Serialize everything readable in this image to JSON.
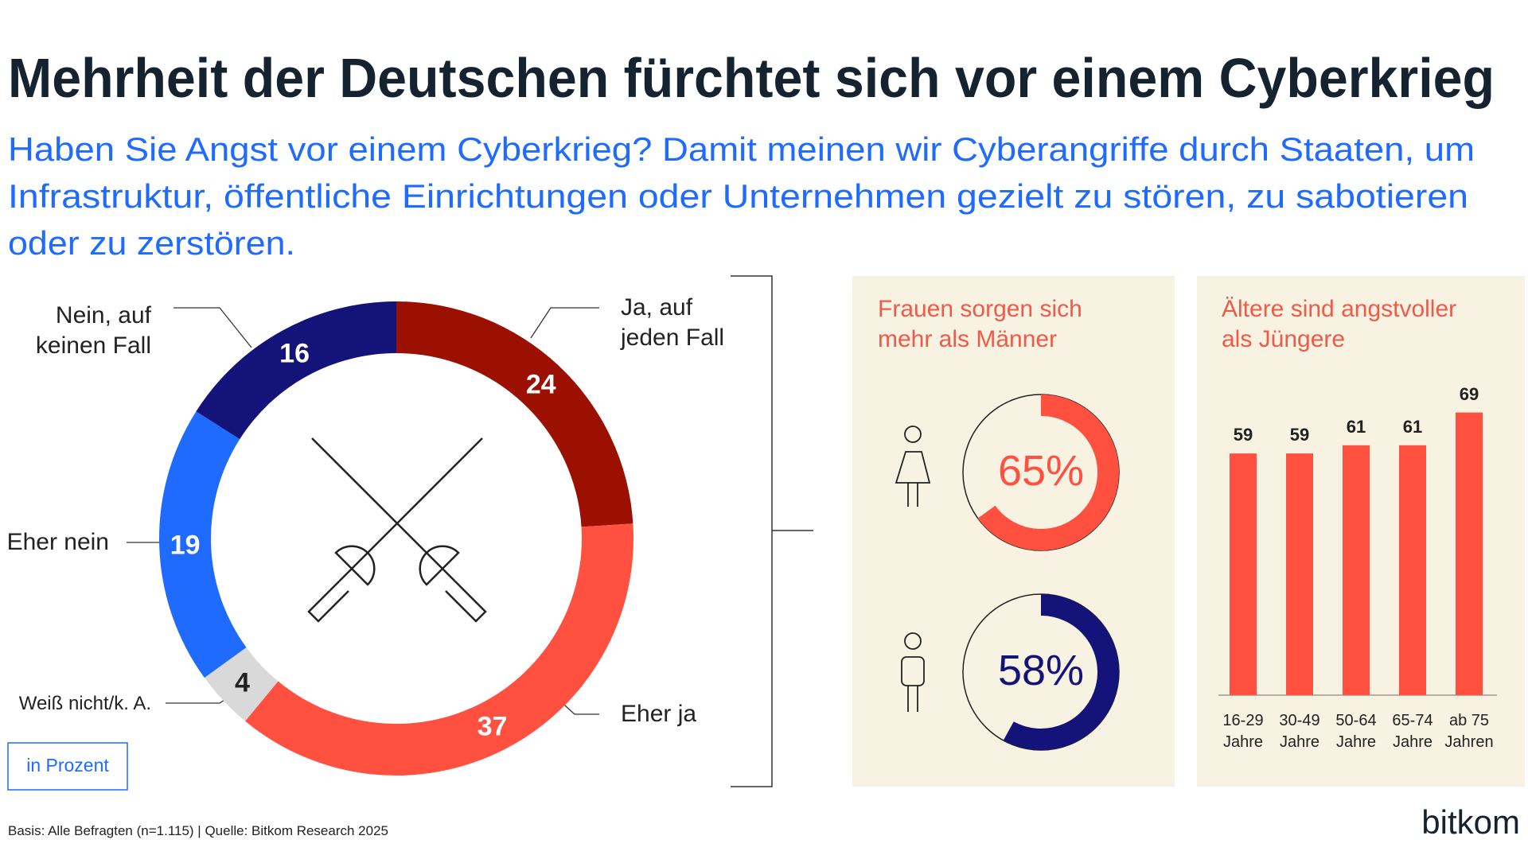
{
  "title": "Mehrheit der Deutschen fürchtet sich vor einem Cyberkrieg",
  "subtitle": [
    "Haben Sie Angst vor einem Cyberkrieg? Damit meinen wir Cyberangriffe durch Staaten, um",
    "Infrastruktur, öffentliche Einrichtungen oder Unternehmen gezielt zu stören, zu sabotieren",
    "oder zu zerstören."
  ],
  "unit_note": "in Prozent",
  "source": "Basis: Alle Befragten (n=1.115) | Quelle: Bitkom Research 2025",
  "brand": "bitkom",
  "chart_data": [
    {
      "type": "donut",
      "categories": [
        "Ja, auf jeden Fall",
        "Eher ja",
        "Weiß nicht/k. A.",
        "Eher nein",
        "Nein, auf keinen Fall"
      ],
      "values": [
        24,
        37,
        4,
        19,
        16
      ],
      "colors": [
        "#9b1000",
        "#ff5040",
        "#d9d9d9",
        "#1f6bff",
        "#14137a"
      ]
    },
    {
      "type": "gauge",
      "title": "Frauen sorgen sich mehr als Männer",
      "values": [
        65,
        58
      ],
      "value_labels": [
        "65%",
        "58%"
      ],
      "colors": [
        "#ff5040",
        "#14137a"
      ]
    },
    {
      "type": "bar",
      "title": "Ältere sind angstvoller als Jüngere",
      "categories": [
        "16-29 Jahre",
        "30-49 Jahre",
        "50-64 Jahre",
        "65-74 Jahre",
        "ab 75 Jahren"
      ],
      "values": [
        59,
        59,
        61,
        61,
        69
      ],
      "color": "#ff5040"
    }
  ]
}
